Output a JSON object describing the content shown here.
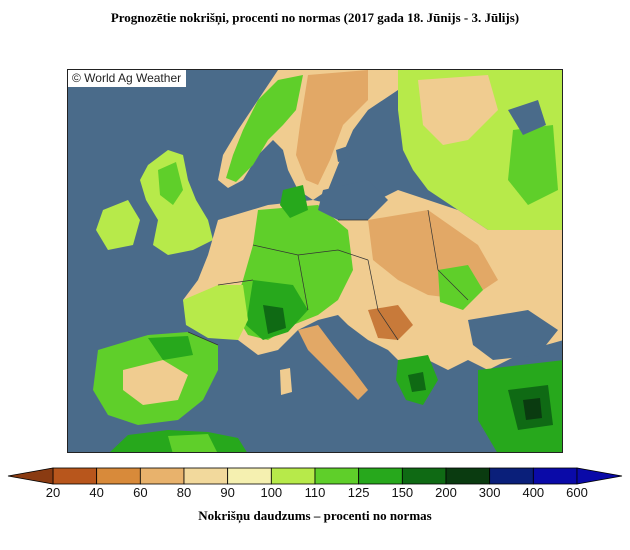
{
  "title": "Prognozētie nokrišņi, procenti no normas (2017 gada 18. Jūnijs - 3. Jūlijs)",
  "credit": "© World Ag Weather",
  "legend": {
    "label": "Nokrišņu daudzums – procenti no normas",
    "ticks": [
      "20",
      "40",
      "60",
      "80",
      "90",
      "100",
      "110",
      "125",
      "150",
      "200",
      "300",
      "400",
      "600"
    ],
    "colors": [
      "#8a3b12",
      "#b8561c",
      "#d88a3a",
      "#e8b26c",
      "#f2d99c",
      "#f5f0b0",
      "#b7ea4a",
      "#5fcf2a",
      "#27a81c",
      "#0f6a14",
      "#0a3b10",
      "#0a1f7a",
      "#0a0aa8"
    ]
  },
  "map": {
    "colors": {
      "sea": "#4a6b8a",
      "very_dry": "#c87a3a",
      "dry": "#e2a866",
      "slightly_dry": "#f0cc90",
      "normal": "#f5ecb0",
      "slightly_wet": "#b7ea4a",
      "wet": "#5fcf2a",
      "very_wet": "#27a81c",
      "extreme_wet": "#0f6a14",
      "lake": "#4a6b8a"
    }
  }
}
